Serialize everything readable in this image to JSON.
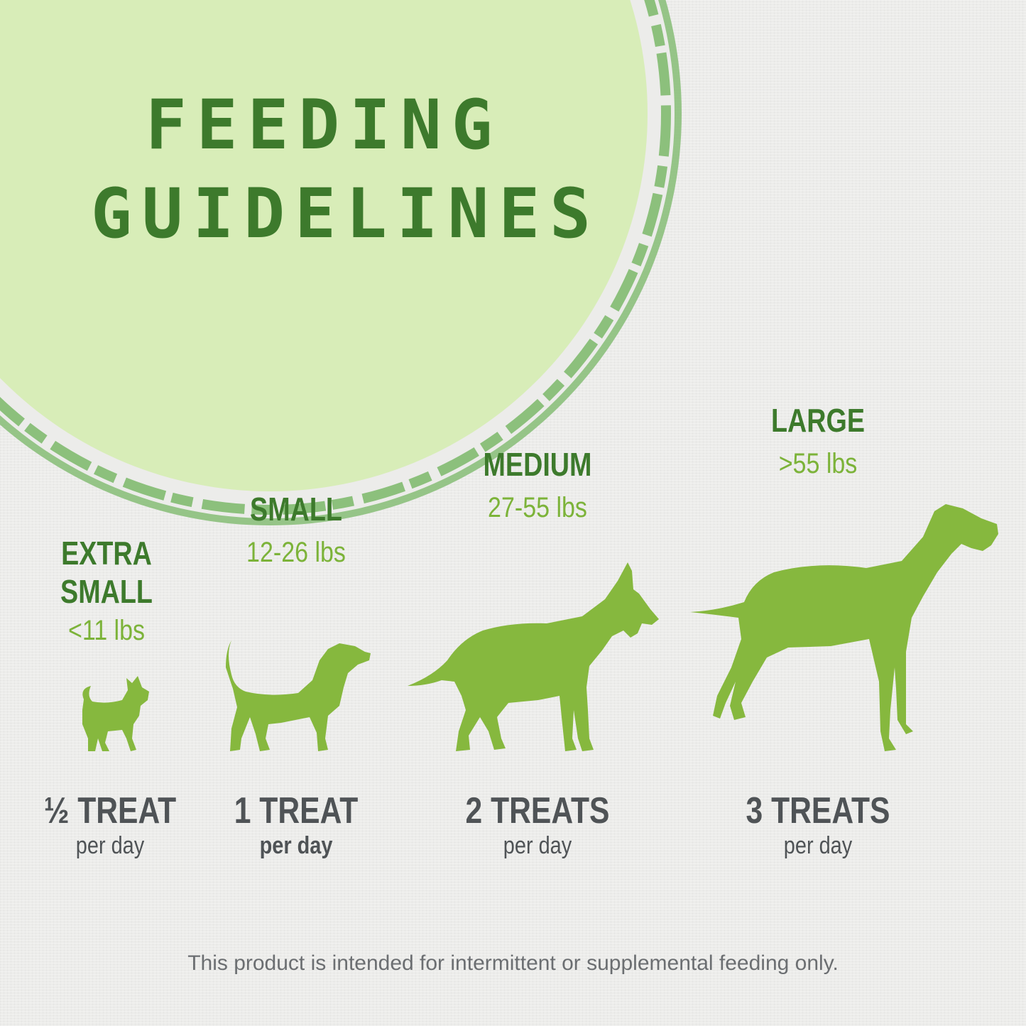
{
  "header": {
    "title_line_1": "FEEDING",
    "title_line_2": "GUIDELINES"
  },
  "sizes": [
    {
      "label_line_1": "EXTRA",
      "label_line_2": "SMALL",
      "weight": "<11 lbs",
      "treats": "½ TREAT",
      "per": "per day"
    },
    {
      "label_line_1": "SMALL",
      "weight": "12-26 lbs",
      "treats": "1 TREAT",
      "per": "per day"
    },
    {
      "label_line_1": "MEDIUM",
      "weight": "27-55 lbs",
      "treats": "2 TREATS",
      "per": "per day"
    },
    {
      "label_line_1": "LARGE",
      "weight": ">55 lbs",
      "treats": "3 TREATS",
      "per": "per day"
    }
  ],
  "footer": {
    "disclaimer": "This product is intended for intermittent or supplemental feeding only."
  },
  "colors": {
    "title_green": "#3d7a2c",
    "weight_green": "#7cb339",
    "dog_green": "#86b83e",
    "badge_fill": "#d8edb8",
    "badge_ring": "#8cc07c",
    "text_gray": "#4f5356"
  },
  "icons": [
    "chihuahua-icon",
    "beagle-icon",
    "shepherd-icon",
    "pointer-icon"
  ]
}
